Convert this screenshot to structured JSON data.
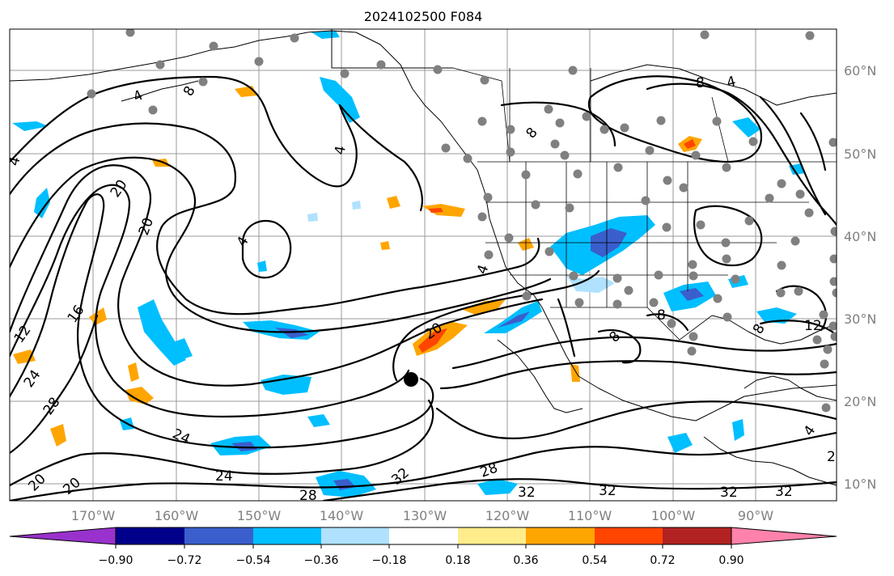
{
  "title": "2024102500 F084",
  "map": {
    "lon_labels": [
      "170°W",
      "160°W",
      "150°W",
      "140°W",
      "130°W",
      "120°W",
      "110°W",
      "100°W",
      "90°W"
    ],
    "lat_labels": [
      "60°N",
      "50°N",
      "40°N",
      "30°N",
      "20°N",
      "10°N"
    ],
    "contour_labels": [
      "4",
      "4",
      "4",
      "4",
      "4",
      "4",
      "8",
      "8",
      "8",
      "8",
      "8",
      "8",
      "12",
      "12",
      "16",
      "20",
      "20",
      "20",
      "20",
      "24",
      "24",
      "24",
      "28",
      "28",
      "28",
      "32",
      "32",
      "32",
      "32",
      "32",
      "4",
      "2",
      "20"
    ],
    "storm_marker": "low-center-dot"
  },
  "colorbar": {
    "tick_labels": [
      "−0.90",
      "−0.72",
      "−0.54",
      "−0.36",
      "−0.18",
      "0.18",
      "0.36",
      "0.54",
      "0.72",
      "0.90"
    ],
    "colors": [
      "#9932cc",
      "#00008b",
      "#3a5fcd",
      "#00bfff",
      "#b0e2ff",
      "#ffffff",
      "#ffec8b",
      "#ffa500",
      "#ff4500",
      "#b22222",
      "#ff82ab"
    ]
  }
}
